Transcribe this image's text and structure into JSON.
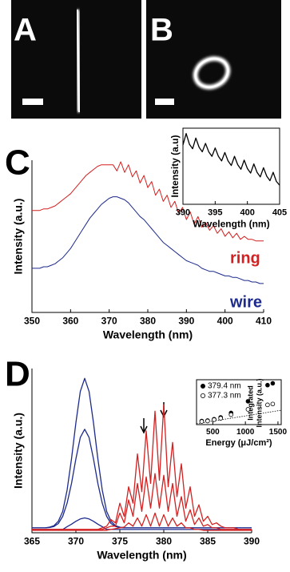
{
  "images": [
    {
      "label": "A"
    },
    {
      "label": "B"
    }
  ],
  "chart_data": [
    {
      "type": "line",
      "label": "C",
      "x_label": "Wavelength (nm)",
      "y_label": "Intensity (a.u.)",
      "x": [
        350,
        351,
        352,
        353,
        354,
        355,
        356,
        357,
        358,
        359,
        360,
        361,
        362,
        363,
        364,
        365,
        366,
        367,
        368,
        369,
        370,
        371,
        372,
        373,
        374,
        375,
        376,
        377,
        378,
        379,
        380,
        381,
        382,
        383,
        384,
        385,
        386,
        387,
        388,
        389,
        390,
        391,
        392,
        393,
        394,
        395,
        396,
        397,
        398,
        399,
        400,
        401,
        402,
        403,
        404,
        405,
        406,
        407,
        408,
        409,
        410
      ],
      "xlim": [
        350,
        410
      ],
      "xticks": [
        350,
        360,
        370,
        380,
        390,
        400,
        410
      ],
      "ylim": [
        0,
        1
      ],
      "series": [
        {
          "name": "ring",
          "color": "#d42020",
          "values": [
            0.67,
            0.67,
            0.67,
            0.68,
            0.68,
            0.69,
            0.7,
            0.72,
            0.74,
            0.76,
            0.78,
            0.81,
            0.84,
            0.87,
            0.9,
            0.92,
            0.94,
            0.96,
            0.97,
            0.97,
            0.97,
            0.97,
            0.93,
            0.99,
            0.92,
            0.97,
            0.89,
            0.93,
            0.85,
            0.9,
            0.82,
            0.86,
            0.77,
            0.81,
            0.73,
            0.77,
            0.69,
            0.73,
            0.65,
            0.69,
            0.61,
            0.66,
            0.58,
            0.63,
            0.56,
            0.59,
            0.54,
            0.57,
            0.52,
            0.55,
            0.5,
            0.53,
            0.49,
            0.52,
            0.48,
            0.5,
            0.48,
            0.48,
            0.47,
            0.47,
            0.47
          ]
        },
        {
          "name": "wire",
          "color": "#1c2a8c",
          "values": [
            0.29,
            0.29,
            0.29,
            0.3,
            0.3,
            0.31,
            0.32,
            0.34,
            0.36,
            0.39,
            0.42,
            0.46,
            0.5,
            0.54,
            0.58,
            0.62,
            0.65,
            0.68,
            0.71,
            0.73,
            0.75,
            0.76,
            0.76,
            0.75,
            0.74,
            0.72,
            0.69,
            0.66,
            0.63,
            0.61,
            0.58,
            0.55,
            0.52,
            0.49,
            0.46,
            0.44,
            0.42,
            0.4,
            0.38,
            0.36,
            0.34,
            0.33,
            0.32,
            0.31,
            0.29,
            0.28,
            0.27,
            0.27,
            0.26,
            0.25,
            0.24,
            0.24,
            0.23,
            0.23,
            0.22,
            0.21,
            0.21,
            0.2,
            0.2,
            0.19,
            0.19
          ]
        }
      ]
    },
    {
      "type": "line",
      "x_label": "Wavelength (nm)",
      "y_label": "Intensity (a.u)",
      "x": [
        390,
        390.5,
        391,
        391.5,
        392,
        392.5,
        393,
        393.5,
        394,
        394.5,
        395,
        395.5,
        396,
        396.5,
        397,
        397.5,
        398,
        398.5,
        399,
        399.5,
        400,
        400.5,
        401,
        401.5,
        402,
        402.5,
        403,
        403.5,
        404,
        404.5,
        405
      ],
      "xlim": [
        390,
        405
      ],
      "xticks": [
        390,
        395,
        400,
        405
      ],
      "ylim": [
        0,
        1
      ],
      "series": [
        {
          "color": "#000000",
          "values": [
            0.78,
            0.93,
            0.79,
            0.73,
            0.87,
            0.75,
            0.69,
            0.8,
            0.69,
            0.63,
            0.74,
            0.63,
            0.57,
            0.68,
            0.57,
            0.51,
            0.63,
            0.52,
            0.46,
            0.58,
            0.47,
            0.41,
            0.53,
            0.42,
            0.36,
            0.48,
            0.37,
            0.31,
            0.42,
            0.3,
            0.25
          ]
        }
      ]
    },
    {
      "type": "line",
      "label": "D",
      "x_label": "Wavelength (nm)",
      "y_label": "Intensity (a.u.)",
      "x": [
        365,
        365.5,
        366,
        366.5,
        367,
        367.5,
        368,
        368.5,
        369,
        369.5,
        370,
        370.5,
        371,
        371.5,
        372,
        372.5,
        373,
        373.5,
        374,
        374.5,
        375,
        375.5,
        376,
        376.5,
        377,
        377.5,
        378,
        378.5,
        379,
        379.5,
        380,
        380.5,
        381,
        381.5,
        382,
        382.5,
        383,
        383.5,
        384,
        384.5,
        385,
        385.5,
        386,
        386.5,
        387,
        387.5,
        388,
        388.5,
        389,
        389.5,
        390
      ],
      "xlim": [
        365,
        390
      ],
      "xticks": [
        365,
        370,
        375,
        380,
        385,
        390
      ],
      "ylim": [
        0,
        1
      ],
      "series": [
        {
          "color": "#1c2a8c",
          "values": [
            0.03,
            0.03,
            0.03,
            0.03,
            0.034,
            0.043,
            0.07,
            0.13,
            0.26,
            0.45,
            0.67,
            0.86,
            0.94,
            0.86,
            0.67,
            0.45,
            0.26,
            0.13,
            0.07,
            0.043,
            0.034,
            0.03,
            0.03,
            0.03,
            0.03,
            0.03,
            0.03,
            0.03,
            0.03,
            0.03,
            0.03,
            0.03,
            0.03,
            0.03,
            0.03,
            0.03,
            0.03,
            0.03,
            0.03,
            0.03,
            0.03,
            0.03,
            0.03,
            0.03,
            0.03,
            0.03,
            0.03,
            0.03,
            0.03,
            0.03,
            0.03
          ]
        },
        {
          "color": "#1c2a8c",
          "values": [
            0.03,
            0.03,
            0.03,
            0.03,
            0.032,
            0.038,
            0.056,
            0.1,
            0.18,
            0.3,
            0.45,
            0.58,
            0.63,
            0.58,
            0.45,
            0.3,
            0.18,
            0.1,
            0.056,
            0.038,
            0.032,
            0.03,
            0.03,
            0.03,
            0.03,
            0.03,
            0.03,
            0.03,
            0.03,
            0.03,
            0.03,
            0.03,
            0.03,
            0.03,
            0.03,
            0.03,
            0.03,
            0.03,
            0.03,
            0.03,
            0.03,
            0.03,
            0.03,
            0.03,
            0.03,
            0.03,
            0.03,
            0.03,
            0.03,
            0.03,
            0.03
          ]
        },
        {
          "color": "#1c2a8c",
          "values": [
            0.02,
            0.02,
            0.02,
            0.02,
            0.02,
            0.02,
            0.02,
            0.02,
            0.037,
            0.052,
            0.07,
            0.084,
            0.09,
            0.084,
            0.07,
            0.052,
            0.037,
            0.02,
            0.02,
            0.02,
            0.02,
            0.02,
            0.02,
            0.02,
            0.02,
            0.02,
            0.02,
            0.02,
            0.02,
            0.02,
            0.02,
            0.02,
            0.02,
            0.02,
            0.02,
            0.02,
            0.02,
            0.02,
            0.02,
            0.02,
            0.02,
            0.02,
            0.02,
            0.02,
            0.02,
            0.02,
            0.02,
            0.02,
            0.02,
            0.02,
            0.02
          ]
        },
        {
          "color": "#d42020",
          "values": [
            0.02,
            0.02,
            0.02,
            0.02,
            0.02,
            0.02,
            0.02,
            0.02,
            0.02,
            0.02,
            0.02,
            0.02,
            0.02,
            0.02,
            0.02,
            0.02,
            0.03,
            0.04,
            0.08,
            0.06,
            0.18,
            0.1,
            0.28,
            0.18,
            0.48,
            0.25,
            0.62,
            0.3,
            0.74,
            0.32,
            0.78,
            0.28,
            0.55,
            0.22,
            0.42,
            0.15,
            0.28,
            0.1,
            0.17,
            0.07,
            0.1,
            0.05,
            0.06,
            0.04,
            0.03,
            0.03,
            0.03,
            0.02,
            0.02,
            0.02,
            0.02
          ]
        },
        {
          "color": "#d42020",
          "values": [
            0.02,
            0.02,
            0.02,
            0.02,
            0.02,
            0.02,
            0.02,
            0.02,
            0.02,
            0.02,
            0.02,
            0.02,
            0.02,
            0.02,
            0.02,
            0.02,
            0.02,
            0.03,
            0.04,
            0.04,
            0.12,
            0.06,
            0.2,
            0.1,
            0.3,
            0.13,
            0.34,
            0.15,
            0.36,
            0.15,
            0.35,
            0.13,
            0.3,
            0.1,
            0.22,
            0.07,
            0.14,
            0.05,
            0.09,
            0.04,
            0.05,
            0.03,
            0.03,
            0.02,
            0.02,
            0.02,
            0.02,
            0.02,
            0.02,
            0.02,
            0.02
          ]
        },
        {
          "color": "#d42020",
          "values": [
            0.015,
            0.015,
            0.015,
            0.015,
            0.015,
            0.015,
            0.015,
            0.015,
            0.015,
            0.015,
            0.015,
            0.015,
            0.015,
            0.015,
            0.015,
            0.015,
            0.015,
            0.015,
            0.02,
            0.025,
            0.03,
            0.035,
            0.06,
            0.04,
            0.09,
            0.04,
            0.11,
            0.04,
            0.12,
            0.04,
            0.11,
            0.04,
            0.09,
            0.04,
            0.06,
            0.03,
            0.03,
            0.02,
            0.02,
            0.015,
            0.015,
            0.015,
            0.015,
            0.015,
            0.015,
            0.015,
            0.015,
            0.015,
            0.015,
            0.015,
            0.015
          ]
        }
      ]
    },
    {
      "type": "scatter",
      "x_label": "Energy (μJ/cm²)",
      "y_label": [
        "Integrated",
        "Intensity (a.u.)"
      ],
      "xlim": [
        250,
        1550
      ],
      "xticks": [
        500,
        1000,
        1500
      ],
      "ylim": [
        0,
        1
      ],
      "series": [
        {
          "name": "379.4 nm",
          "color": "#000000",
          "marker": "filled",
          "x": [
            330,
            420,
            520,
            620,
            780,
            1040,
            1340,
            1420
          ],
          "values": [
            0.08,
            0.09,
            0.12,
            0.16,
            0.26,
            0.52,
            0.88,
            0.92
          ]
        },
        {
          "name": "377.3 nm",
          "color": "#000000",
          "marker": "open",
          "x": [
            330,
            420,
            520,
            620,
            780,
            1040,
            1340,
            1420
          ],
          "values": [
            0.07,
            0.08,
            0.11,
            0.14,
            0.22,
            0.34,
            0.44,
            0.46
          ]
        }
      ],
      "fit": {
        "x": [
          250,
          1550
        ],
        "values": [
          0.02,
          0.32
        ]
      }
    }
  ]
}
